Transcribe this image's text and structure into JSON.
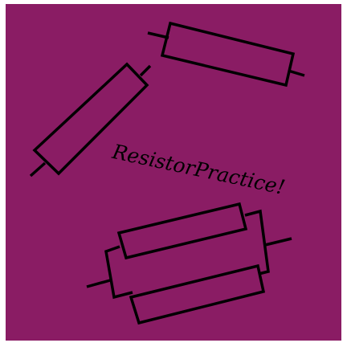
{
  "logo": {
    "title": "ResistorPractice!",
    "colors": {
      "background": "#8a1c64",
      "stroke": "#000000",
      "frame": "#ffffff"
    },
    "icons": [
      "resistor-icon",
      "resistor-icon",
      "parallel-resistors-icon"
    ]
  }
}
